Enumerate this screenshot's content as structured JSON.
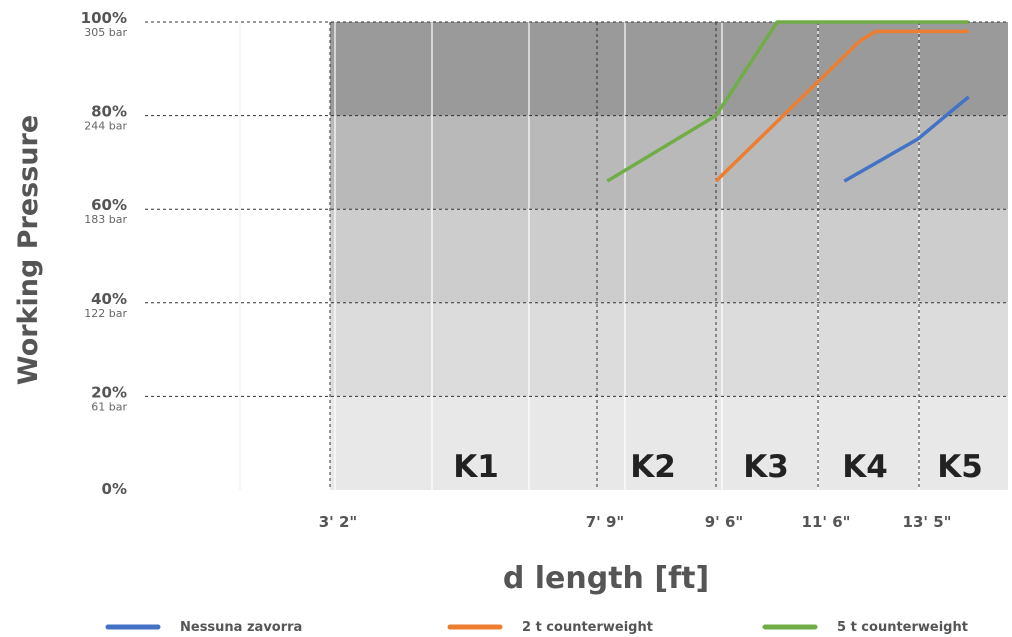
{
  "chart_data": {
    "type": "line",
    "xlabel": "d length [ft]",
    "ylabel": "Working Pressure",
    "x_ticks": [
      {
        "value": 3.17,
        "label": "3' 2\""
      },
      {
        "value": 7.75,
        "label": "7' 9\""
      },
      {
        "value": 9.5,
        "label": "9' 6\""
      },
      {
        "value": 11.5,
        "label": "11' 6\""
      },
      {
        "value": 13.42,
        "label": "13' 5\""
      }
    ],
    "y_ticks": [
      {
        "value": 0,
        "label": "0%",
        "sublabel": ""
      },
      {
        "value": 20,
        "label": "20%",
        "sublabel": "61 bar"
      },
      {
        "value": 40,
        "label": "40%",
        "sublabel": "122 bar"
      },
      {
        "value": 60,
        "label": "60%",
        "sublabel": "183 bar"
      },
      {
        "value": 80,
        "label": "80%",
        "sublabel": "244 bar"
      },
      {
        "value": 100,
        "label": "100%",
        "sublabel": "305 bar"
      }
    ],
    "ylim": [
      0,
      100
    ],
    "grid": true,
    "zones": [
      {
        "label": "K1",
        "x_center": 5.4
      },
      {
        "label": "K2",
        "x_center": 8.5
      },
      {
        "label": "K3",
        "x_center": 10.4
      },
      {
        "label": "K4",
        "x_center": 12.3
      },
      {
        "label": "K5",
        "x_center": 14.2
      }
    ],
    "series": [
      {
        "name": "Nessuna zavorra",
        "color": "#4472c4",
        "points": [
          [
            12.0,
            66
          ],
          [
            13.4,
            75
          ],
          [
            14.3,
            84
          ]
        ]
      },
      {
        "name": "2 t counterweight",
        "color": "#ed7d31",
        "points": [
          [
            9.5,
            66
          ],
          [
            12.3,
            96
          ],
          [
            12.6,
            98
          ],
          [
            14.3,
            98
          ]
        ]
      },
      {
        "name": "5 t counterweight",
        "color": "#70ad47",
        "points": [
          [
            7.9,
            66
          ],
          [
            9.5,
            80
          ],
          [
            10.7,
            100
          ],
          [
            14.3,
            100
          ]
        ]
      }
    ],
    "legend_position": "bottom"
  }
}
